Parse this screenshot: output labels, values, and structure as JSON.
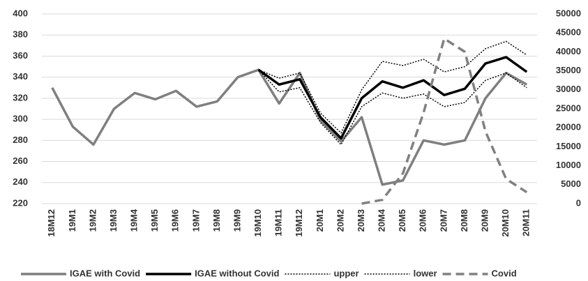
{
  "chart_data": {
    "type": "line",
    "categories": [
      "18M12",
      "19M1",
      "19M2",
      "19M3",
      "19M4",
      "19M5",
      "19M6",
      "19M7",
      "19M8",
      "19M9",
      "19M10",
      "19M11",
      "19M12",
      "20M1",
      "20M2",
      "20M3",
      "20M4",
      "20M5",
      "20M6",
      "20M7",
      "20M8",
      "20M9",
      "20M10",
      "20M11"
    ],
    "series": [
      {
        "name": "IGAE with Covid",
        "color": "#7f7f7f",
        "line_style": "solid",
        "width": 3.5,
        "values": [
          330,
          293,
          276,
          310,
          325,
          319,
          327,
          312,
          317,
          340,
          347,
          315,
          344,
          299,
          279,
          302,
          238,
          242,
          280,
          276,
          280,
          320,
          344,
          333
        ]
      },
      {
        "name": "IGAE without Covid",
        "color": "#000000",
        "line_style": "solid",
        "width": 3.5,
        "values": [
          null,
          null,
          null,
          null,
          null,
          null,
          null,
          null,
          null,
          null,
          347,
          333,
          338,
          302,
          282,
          320,
          336,
          330,
          337,
          323,
          329,
          353,
          359,
          345
        ]
      },
      {
        "name": "upper",
        "color": "#000000",
        "line_style": "dotted",
        "width": 1.5,
        "values": [
          null,
          null,
          null,
          null,
          null,
          null,
          null,
          null,
          null,
          null,
          347,
          339,
          344,
          306,
          287,
          328,
          355,
          351,
          357,
          345,
          350,
          367,
          374,
          361
        ]
      },
      {
        "name": "lower",
        "color": "#000000",
        "line_style": "dotted",
        "width": 1.5,
        "values": [
          null,
          null,
          null,
          null,
          null,
          null,
          null,
          null,
          null,
          null,
          347,
          326,
          330,
          297,
          276,
          312,
          325,
          320,
          324,
          312,
          316,
          337,
          344,
          330
        ]
      },
      {
        "name": "Covid",
        "color": "#808080",
        "line_style": "dashed",
        "width": 3.5,
        "axis": "y2",
        "values": [
          null,
          null,
          null,
          null,
          null,
          null,
          null,
          null,
          null,
          null,
          null,
          null,
          null,
          null,
          null,
          0,
          1000,
          8000,
          24000,
          43500,
          40000,
          19000,
          6500,
          3000
        ]
      }
    ],
    "ylim": [
      220,
      400
    ],
    "yticks": [
      220,
      240,
      260,
      280,
      300,
      320,
      340,
      360,
      380,
      400
    ],
    "y2lim": [
      0,
      50000
    ],
    "y2ticks": [
      0,
      5000,
      10000,
      15000,
      20000,
      25000,
      30000,
      35000,
      40000,
      45000,
      50000
    ],
    "grid": true,
    "legend": "bottom"
  }
}
